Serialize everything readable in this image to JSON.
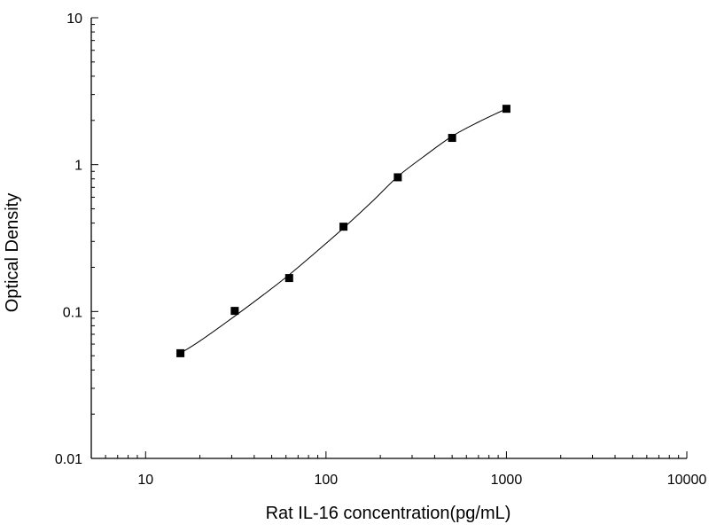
{
  "chart_data": {
    "type": "scatter",
    "title": "",
    "xlabel": "Rat IL-16 concentration(pg/mL)",
    "ylabel": "Optical Density",
    "xscale": "log",
    "yscale": "log",
    "xlim": [
      5,
      10000
    ],
    "ylim": [
      0.01,
      10
    ],
    "xticks": [
      10,
      100,
      1000,
      10000
    ],
    "xtick_labels": [
      "10",
      "100",
      "1000",
      "10000"
    ],
    "yticks": [
      0.01,
      0.1,
      1,
      10
    ],
    "ytick_labels": [
      "0.01",
      "0.1",
      "1",
      "10"
    ],
    "grid": false,
    "legend": "none",
    "series": [
      {
        "marker": "square",
        "color": "#000000",
        "x": [
          15.6,
          31.2,
          62.5,
          125,
          250,
          500,
          1000
        ],
        "y": [
          0.052,
          0.101,
          0.169,
          0.378,
          0.82,
          1.52,
          2.4
        ]
      }
    ],
    "fit_curve": {
      "color": "#000000",
      "x": [
        15.6,
        20,
        31.2,
        45,
        62.5,
        90,
        125,
        180,
        250,
        350,
        500,
        700,
        1000
      ],
      "y": [
        0.052,
        0.063,
        0.093,
        0.13,
        0.178,
        0.26,
        0.37,
        0.56,
        0.83,
        1.14,
        1.56,
        1.95,
        2.4
      ]
    }
  }
}
